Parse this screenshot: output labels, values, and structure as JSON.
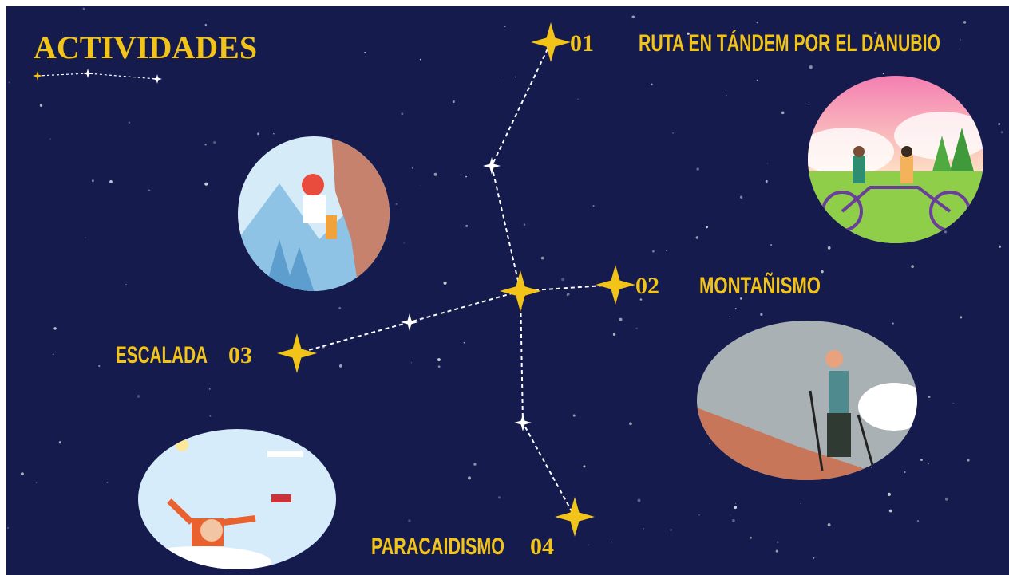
{
  "title": "ACTIVIDADES",
  "activities": [
    {
      "number": "01",
      "label": "RUTA EN TÁNDEM POR EL DANUBIO"
    },
    {
      "number": "02",
      "label": "MONTAÑISMO"
    },
    {
      "number": "03",
      "label": "ESCALADA"
    },
    {
      "number": "04",
      "label": "PARACAIDISMO"
    }
  ]
}
